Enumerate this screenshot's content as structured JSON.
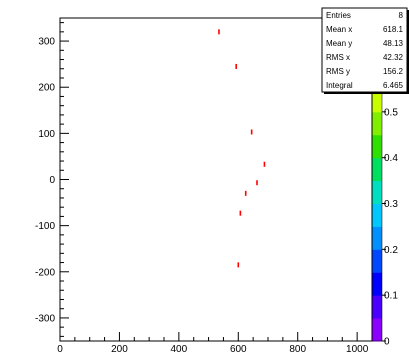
{
  "chart_data": {
    "type": "scatter",
    "title": "",
    "xlabel": "",
    "ylabel": "",
    "xlim": [
      0,
      1050
    ],
    "ylim": [
      -350,
      350
    ],
    "xticks": [
      0,
      200,
      400,
      600,
      800,
      1000
    ],
    "xtick_labels": [
      "0",
      "200",
      "400",
      "600",
      "800",
      "1000"
    ],
    "yticks": [
      -300,
      -200,
      -100,
      0,
      100,
      200,
      300
    ],
    "ytick_labels": [
      "-300",
      "-200",
      "-100",
      "0",
      "100",
      "200",
      "300"
    ],
    "grid": false,
    "marker_color": "#ff0000",
    "points": [
      {
        "x": 535,
        "y": 320
      },
      {
        "x": 593,
        "y": 245
      },
      {
        "x": 645,
        "y": 103
      },
      {
        "x": 688,
        "y": 33
      },
      {
        "x": 663,
        "y": -7
      },
      {
        "x": 625,
        "y": -30
      },
      {
        "x": 607,
        "y": -73
      },
      {
        "x": 600,
        "y": -185
      }
    ],
    "colorbar": {
      "min": 0,
      "max": 0.6,
      "tick_labels": [
        "0",
        "0.1",
        "0.2",
        "0.3",
        "0.4",
        "0.5"
      ],
      "tick_values": [
        0,
        0.1,
        0.2,
        0.3,
        0.4,
        0.5
      ]
    },
    "stats_box": {
      "rows": [
        {
          "label": "Entries",
          "value": "8"
        },
        {
          "label": "Mean x",
          "value": "618.1"
        },
        {
          "label": "Mean y",
          "value": "48.13"
        },
        {
          "label": "RMS x",
          "value": "42.32"
        },
        {
          "label": "RMS y",
          "value": "156.2"
        },
        {
          "label": "Integral",
          "value": "6.465"
        }
      ]
    }
  }
}
